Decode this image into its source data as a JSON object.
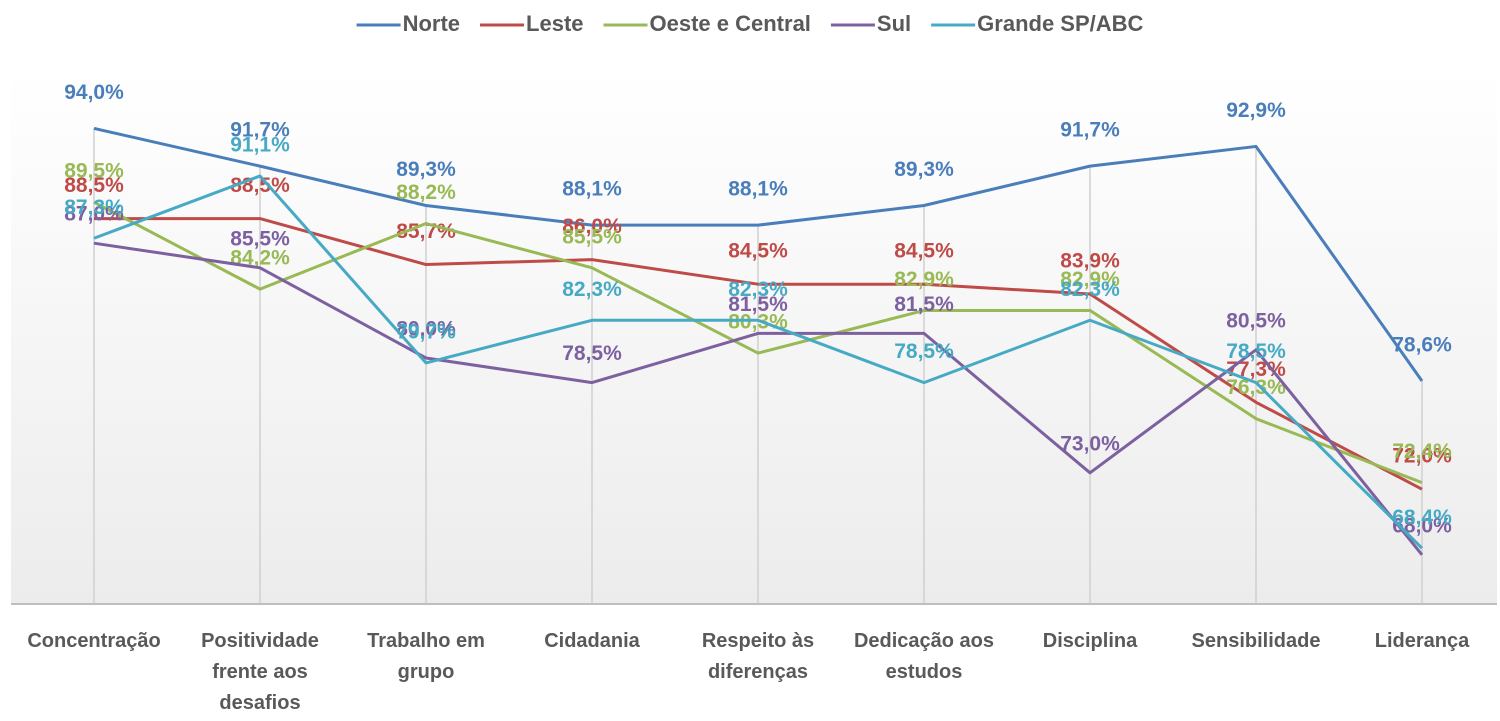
{
  "chart_data": {
    "type": "line",
    "categories": [
      "Concentração",
      "Positividade frente aos desafios",
      "Trabalho em grupo",
      "Cidadania",
      "Respeito às diferenças",
      "Dedicação aos estudos",
      "Disciplina",
      "Sensibilidade",
      "Liderança"
    ],
    "ylim": [
      65,
      100
    ],
    "legend": "top",
    "series": [
      {
        "name": "Norte",
        "color": "#4a7ebb",
        "values": [
          94.0,
          91.7,
          89.3,
          88.1,
          88.1,
          89.3,
          91.7,
          92.9,
          78.6
        ],
        "value_labels": [
          "94,0%",
          "91,7%",
          "89,3%",
          "88,1%",
          "88,1%",
          "89,3%",
          "91,7%",
          "92,9%",
          "78,6%"
        ]
      },
      {
        "name": "Leste",
        "color": "#be4b48",
        "values": [
          88.5,
          88.5,
          85.7,
          86.0,
          84.5,
          84.5,
          83.9,
          77.3,
          72.0
        ],
        "value_labels": [
          "88,5%",
          "88,5%",
          "85,7%",
          "86,0%",
          "84,5%",
          "84,5%",
          "83,9%",
          "77,3%",
          "72,0%"
        ]
      },
      {
        "name": "Oeste e Central",
        "color": "#98b954",
        "values": [
          89.5,
          84.2,
          88.2,
          85.5,
          80.3,
          82.9,
          82.9,
          76.3,
          72.4
        ],
        "value_labels": [
          "89,5%",
          "84,2%",
          "88,2%",
          "85,5%",
          "80,3%",
          "82,9%",
          "82,9%",
          "76,3%",
          "72,4%"
        ]
      },
      {
        "name": "Sul",
        "color": "#7d60a0",
        "values": [
          87.0,
          85.5,
          80.0,
          78.5,
          81.5,
          81.5,
          73.0,
          80.5,
          68.0
        ],
        "value_labels": [
          "87,0%",
          "85,5%",
          "80,0%",
          "78,5%",
          "81,5%",
          "81,5%",
          "73,0%",
          "80,5%",
          "68,0%"
        ]
      },
      {
        "name": "Grande SP/ABC",
        "color": "#46aac5",
        "values": [
          87.3,
          91.1,
          79.7,
          82.3,
          82.3,
          78.5,
          82.3,
          78.5,
          68.4
        ],
        "value_labels": [
          "87,3%",
          "91,1%",
          "79,7%",
          "82,3%",
          "82,3%",
          "78,5%",
          "82,3%",
          "78,5%",
          "68,4%"
        ]
      }
    ]
  }
}
